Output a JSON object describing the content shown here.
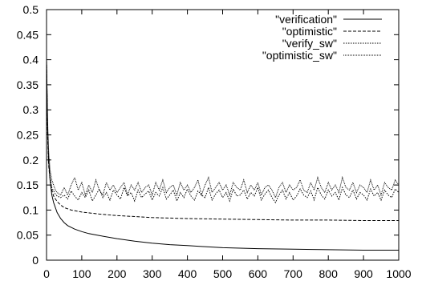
{
  "chart_data": {
    "type": "line",
    "title": "",
    "xlabel": "",
    "ylabel": "",
    "xlim": [
      0,
      1000
    ],
    "ylim": [
      0,
      0.5
    ],
    "x_ticks": [
      0,
      100,
      200,
      300,
      400,
      500,
      600,
      700,
      800,
      900,
      1000
    ],
    "y_ticks": [
      0,
      0.05,
      0.1,
      0.15,
      0.2,
      0.25,
      0.3,
      0.35,
      0.4,
      0.45,
      0.5
    ],
    "x_tick_labels": [
      "0",
      "100",
      "200",
      "300",
      "400",
      "500",
      "600",
      "700",
      "800",
      "900",
      "1000"
    ],
    "y_tick_labels": [
      "0",
      "0.05",
      "0.1",
      "0.15",
      "0.2",
      "0.25",
      "0.3",
      "0.35",
      "0.4",
      "0.45",
      "0.5"
    ],
    "grid": false,
    "legend_position": "top-right",
    "series": [
      {
        "name": "\"verification\"",
        "style": "solid",
        "x": [
          0,
          3,
          6,
          10,
          15,
          20,
          30,
          40,
          50,
          60,
          80,
          100,
          120,
          150,
          200,
          250,
          300,
          350,
          400,
          450,
          500,
          600,
          700,
          800,
          900,
          1000
        ],
        "y": [
          0.4,
          0.27,
          0.2,
          0.16,
          0.13,
          0.115,
          0.095,
          0.083,
          0.075,
          0.069,
          0.062,
          0.057,
          0.053,
          0.049,
          0.043,
          0.038,
          0.034,
          0.031,
          0.029,
          0.027,
          0.025,
          0.023,
          0.022,
          0.021,
          0.02,
          0.02
        ]
      },
      {
        "name": "\"optimistic\"",
        "style": "dashed",
        "x": [
          0,
          3,
          6,
          10,
          15,
          20,
          30,
          40,
          50,
          70,
          100,
          150,
          200,
          250,
          300,
          350,
          400,
          500,
          600,
          700,
          800,
          900,
          1000
        ],
        "y": [
          0.4,
          0.25,
          0.19,
          0.16,
          0.14,
          0.128,
          0.117,
          0.11,
          0.105,
          0.1,
          0.096,
          0.092,
          0.089,
          0.087,
          0.085,
          0.084,
          0.083,
          0.082,
          0.081,
          0.08,
          0.08,
          0.079,
          0.079
        ]
      },
      {
        "name": "\"verify_sw\"",
        "style": "dotted",
        "x": [
          0,
          3,
          6,
          10,
          15,
          20,
          25,
          30,
          40,
          50,
          60,
          70,
          80,
          90,
          100,
          110,
          120,
          130,
          140,
          150,
          160,
          170,
          180,
          190,
          200,
          210,
          220,
          230,
          240,
          250,
          260,
          270,
          280,
          290,
          300,
          310,
          320,
          330,
          340,
          350,
          360,
          370,
          380,
          390,
          400,
          410,
          420,
          430,
          440,
          450,
          460,
          470,
          480,
          490,
          500,
          510,
          520,
          530,
          540,
          550,
          560,
          570,
          580,
          590,
          600,
          610,
          620,
          630,
          640,
          650,
          660,
          670,
          680,
          690,
          700,
          710,
          720,
          730,
          740,
          750,
          760,
          770,
          780,
          790,
          800,
          810,
          820,
          830,
          840,
          850,
          860,
          870,
          880,
          890,
          900,
          910,
          920,
          930,
          940,
          950,
          960,
          970,
          980,
          990,
          1000
        ],
        "y": [
          0.4,
          0.26,
          0.2,
          0.165,
          0.145,
          0.138,
          0.132,
          0.128,
          0.125,
          0.13,
          0.122,
          0.138,
          0.128,
          0.12,
          0.135,
          0.125,
          0.14,
          0.118,
          0.13,
          0.142,
          0.125,
          0.135,
          0.12,
          0.14,
          0.13,
          0.122,
          0.145,
          0.128,
          0.135,
          0.118,
          0.14,
          0.125,
          0.132,
          0.138,
          0.12,
          0.135,
          0.128,
          0.145,
          0.122,
          0.13,
          0.14,
          0.118,
          0.135,
          0.125,
          0.142,
          0.128,
          0.12,
          0.138,
          0.13,
          0.125,
          0.145,
          0.12,
          0.132,
          0.14,
          0.125,
          0.135,
          0.118,
          0.142,
          0.128,
          0.13,
          0.14,
          0.122,
          0.135,
          0.128,
          0.145,
          0.12,
          0.132,
          0.14,
          0.125,
          0.115,
          0.13,
          0.14,
          0.122,
          0.135,
          0.12,
          0.128,
          0.142,
          0.13,
          0.125,
          0.138,
          0.12,
          0.145,
          0.13,
          0.122,
          0.14,
          0.128,
          0.135,
          0.12,
          0.145,
          0.13,
          0.125,
          0.14,
          0.122,
          0.135,
          0.13,
          0.12,
          0.142,
          0.128,
          0.135,
          0.12,
          0.14,
          0.13,
          0.125,
          0.142,
          0.135
        ]
      },
      {
        "name": "\"optimistic_sw\"",
        "style": "fine-dotted",
        "x": [
          0,
          3,
          6,
          10,
          15,
          20,
          25,
          30,
          40,
          50,
          60,
          70,
          80,
          90,
          100,
          110,
          120,
          130,
          140,
          150,
          160,
          170,
          180,
          190,
          200,
          210,
          220,
          230,
          240,
          250,
          260,
          270,
          280,
          290,
          300,
          310,
          320,
          330,
          340,
          350,
          360,
          370,
          380,
          390,
          400,
          410,
          420,
          430,
          440,
          450,
          460,
          470,
          480,
          490,
          500,
          510,
          520,
          530,
          540,
          550,
          560,
          570,
          580,
          590,
          600,
          610,
          620,
          630,
          640,
          650,
          660,
          670,
          680,
          690,
          700,
          710,
          720,
          730,
          740,
          750,
          760,
          770,
          780,
          790,
          800,
          810,
          820,
          830,
          840,
          850,
          860,
          870,
          880,
          890,
          900,
          910,
          920,
          930,
          940,
          950,
          960,
          970,
          980,
          990,
          1000
        ],
        "y": [
          0.4,
          0.28,
          0.22,
          0.18,
          0.16,
          0.15,
          0.14,
          0.135,
          0.13,
          0.145,
          0.13,
          0.15,
          0.165,
          0.14,
          0.155,
          0.13,
          0.15,
          0.135,
          0.16,
          0.14,
          0.13,
          0.155,
          0.14,
          0.15,
          0.135,
          0.145,
          0.155,
          0.13,
          0.15,
          0.14,
          0.155,
          0.135,
          0.145,
          0.15,
          0.13,
          0.155,
          0.14,
          0.16,
          0.135,
          0.145,
          0.15,
          0.13,
          0.155,
          0.14,
          0.15,
          0.135,
          0.145,
          0.16,
          0.13,
          0.15,
          0.165,
          0.135,
          0.145,
          0.155,
          0.14,
          0.15,
          0.13,
          0.155,
          0.145,
          0.14,
          0.16,
          0.135,
          0.15,
          0.14,
          0.155,
          0.13,
          0.145,
          0.15,
          0.14,
          0.125,
          0.145,
          0.155,
          0.135,
          0.15,
          0.14,
          0.145,
          0.16,
          0.14,
          0.135,
          0.155,
          0.14,
          0.165,
          0.145,
          0.135,
          0.155,
          0.14,
          0.15,
          0.135,
          0.165,
          0.145,
          0.14,
          0.155,
          0.135,
          0.15,
          0.145,
          0.135,
          0.16,
          0.14,
          0.15,
          0.13,
          0.155,
          0.145,
          0.14,
          0.16,
          0.15
        ]
      }
    ]
  }
}
